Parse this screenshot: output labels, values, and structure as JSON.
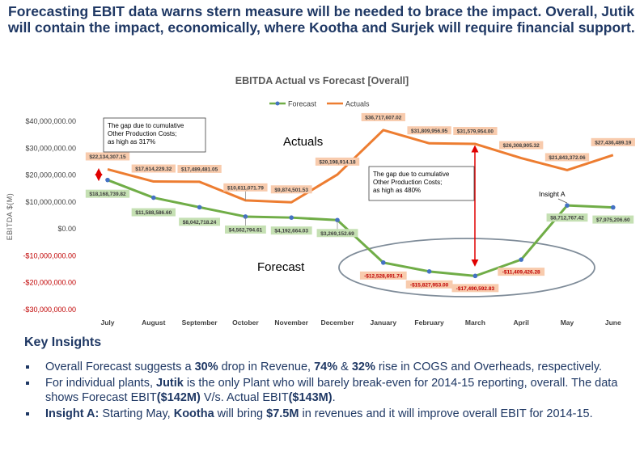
{
  "headline": "Forecasting EBIT data warns stern measure will be needed to brace the impact. Overall, Jutik will contain the impact, economically, where Kootha and Surjek will require financial support.",
  "chart_data": {
    "type": "line",
    "title": "EBITDA Actual vs Forecast [Overall]",
    "ylabel": "EBITDA $(M)",
    "xlabel": "",
    "categories": [
      "July",
      "August",
      "September",
      "October",
      "November",
      "December",
      "January",
      "February",
      "March",
      "April",
      "May",
      "June"
    ],
    "ylim": [
      -30000000,
      40000000
    ],
    "ytick_values": [
      40000000,
      30000000,
      20000000,
      10000000,
      0,
      -10000000,
      -20000000,
      -30000000
    ],
    "ytick_labels": [
      "$40,000,000.00",
      "$30,000,000.00",
      "$20,000,000.00",
      "$10,000,000.00",
      "$0.00",
      "-$10,000,000.00",
      "-$20,000,000.00",
      "-$30,000,000.00"
    ],
    "grid": false,
    "legend_position": "top",
    "series": [
      {
        "name": "Forecast",
        "color": "#70ad47",
        "marker_color": "#4472c4",
        "values": [
          18168739.82,
          11588586.6,
          8042718.24,
          4562794.61,
          4192664.03,
          3269152.69,
          -12528691.74,
          -15827953.0,
          -17490592.83,
          -11409426.28,
          8712767.42,
          7975206.6
        ],
        "labels": [
          "$18,168,739.82",
          "$11,588,586.60",
          "$8,042,718.24",
          "$4,562,794.61",
          "$4,192,664.03",
          "$3,269,152.69",
          "-$12,528,691.74",
          "-$15,827,953.00",
          "-$17,490,592.83",
          "-$11,409,426.28",
          "$8,712,767.42",
          "$7,975,206.60"
        ]
      },
      {
        "name": "Actuals",
        "color": "#ed7d31",
        "values": [
          22134307.15,
          17614229.32,
          17489481.05,
          10611071.79,
          9874501.53,
          20198914.18,
          36717607.02,
          31809956.95,
          31579954.0,
          26308905.32,
          21843372.06,
          27436489.19
        ],
        "labels": [
          "$22,134,307.15",
          "$17,614,229.32",
          "$17,489,481.05",
          "$10,611,071.79",
          "$9,874,501.53",
          "$20,198,914.18",
          "$36,717,607.02",
          "$31,809,956.95",
          "$31,579,954.00",
          "$26,308,905.32",
          "$21,843,372.06",
          "$27,436,489.19"
        ]
      }
    ],
    "annotations": {
      "gap_box_1": [
        "The gap due to cumulative",
        "Other Production Costs;",
        "as high as 317%"
      ],
      "gap_box_2": [
        "The gap due to cumulative",
        "Other Production Costs;",
        " as high as 480%"
      ],
      "actuals_label": "Actuals",
      "forecast_label": "Forecast",
      "insight_label": "Insight A"
    }
  },
  "insights": {
    "title": "Key Insights",
    "items": [
      [
        {
          "t": "Overall Forecast suggests a ",
          "b": false
        },
        {
          "t": "30%",
          "b": true
        },
        {
          "t": " drop in Revenue, ",
          "b": false
        },
        {
          "t": "74%",
          "b": true
        },
        {
          "t": " & ",
          "b": false
        },
        {
          "t": "32%",
          "b": true
        },
        {
          "t": " rise in COGS and Overheads, respectively.",
          "b": false
        }
      ],
      [
        {
          "t": "For individual plants, ",
          "b": false
        },
        {
          "t": "Jutik",
          "b": true
        },
        {
          "t": " is the only Plant who will barely break-even for 2014-15 reporting, overall. The data shows Forecast EBIT",
          "b": false
        },
        {
          "t": "($142M)",
          "b": true
        },
        {
          "t": " V/s. Actual EBIT",
          "b": false
        },
        {
          "t": "($143M)",
          "b": true
        },
        {
          "t": ".",
          "b": false
        }
      ],
      [
        {
          "t": "Insight A:",
          "b": true
        },
        {
          "t": " Starting May, ",
          "b": false
        },
        {
          "t": "Kootha",
          "b": true
        },
        {
          "t": " will bring ",
          "b": false
        },
        {
          "t": "$7.5M",
          "b": true
        },
        {
          "t": " in revenues and it will improve overall EBIT for 2014-15.",
          "b": false
        }
      ]
    ]
  }
}
